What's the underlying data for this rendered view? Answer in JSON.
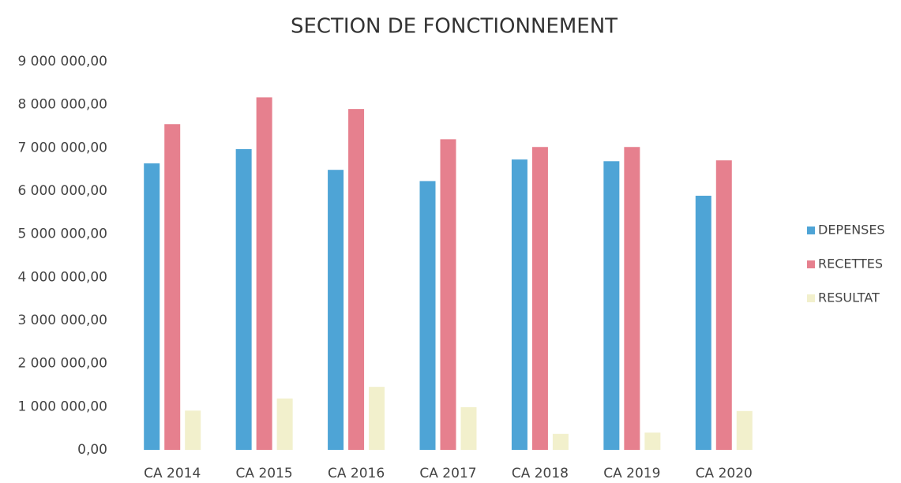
{
  "chart_data": {
    "type": "bar",
    "title": "SECTION DE FONCTIONNEMENT",
    "categories": [
      "CA 2014",
      "CA 2015",
      "CA 2016",
      "CA 2017",
      "CA 2018",
      "CA 2019",
      "CA 2020"
    ],
    "series": [
      {
        "name": "DEPENSES",
        "color": "#4ea4d6",
        "values": [
          6640000,
          6970000,
          6490000,
          6230000,
          6730000,
          6690000,
          5890000
        ]
      },
      {
        "name": "RECETTES",
        "color": "#e6808e",
        "values": [
          7550000,
          8170000,
          7900000,
          7200000,
          7020000,
          7020000,
          6710000
        ]
      },
      {
        "name": "RESULTAT",
        "color": "#f2f0cc",
        "values": [
          910000,
          1190000,
          1460000,
          990000,
          370000,
          400000,
          900000
        ]
      }
    ],
    "ylim": [
      0,
      9000000
    ],
    "yticks": [
      {
        "value": 0,
        "label": "0,00"
      },
      {
        "value": 1000000,
        "label": "1 000 000,00"
      },
      {
        "value": 2000000,
        "label": "2 000 000,00"
      },
      {
        "value": 3000000,
        "label": "3 000 000,00"
      },
      {
        "value": 4000000,
        "label": "4 000 000,00"
      },
      {
        "value": 5000000,
        "label": "5 000 000,00"
      },
      {
        "value": 6000000,
        "label": "6 000 000,00"
      },
      {
        "value": 7000000,
        "label": "7 000 000,00"
      },
      {
        "value": 8000000,
        "label": "8 000 000,00"
      },
      {
        "value": 9000000,
        "label": "9 000 000,00"
      }
    ],
    "grid": false,
    "legend": "right"
  }
}
